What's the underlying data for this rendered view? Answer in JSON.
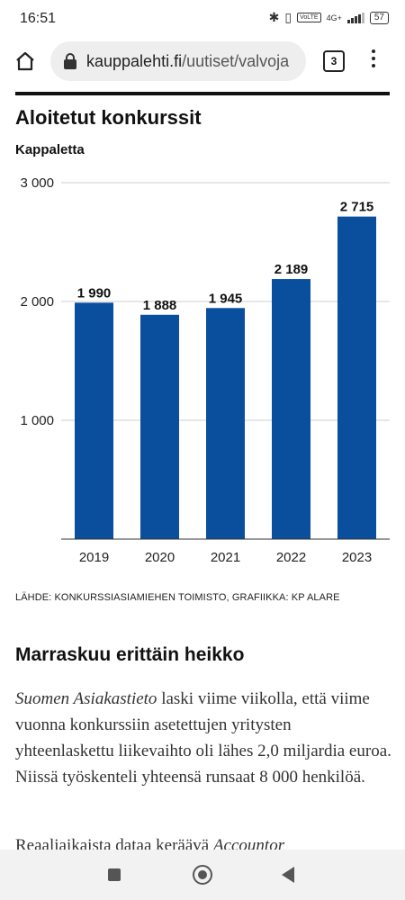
{
  "status_bar": {
    "time": "16:51",
    "network": "4G+",
    "volte": "VoLTE",
    "battery": "57"
  },
  "browser": {
    "url_host": "kauppalehti.fi",
    "url_path": "/uutiset/valvoja",
    "tab_count": "3"
  },
  "chart_data": {
    "type": "bar",
    "title": "Aloitetut konkurssit",
    "ylabel": "Kappaletta",
    "categories": [
      "2019",
      "2020",
      "2021",
      "2022",
      "2023"
    ],
    "values": [
      1990,
      1888,
      1945,
      2189,
      2715
    ],
    "value_labels": [
      "1 990",
      "1 888",
      "1 945",
      "2 189",
      "2 715"
    ],
    "ylim": [
      0,
      3000
    ],
    "yticks": [
      1000,
      2000,
      3000
    ],
    "ytick_labels": [
      "1 000",
      "2 000",
      "3 000"
    ],
    "bar_color": "#0a4f9e",
    "grid": true
  },
  "article": {
    "source": "LÄHDE: KONKURSSIASIAMIEHEN TOIMISTO, GRAFIIKKA: KP ALARE",
    "subheading": "Marraskuu erittäin heikko",
    "p1_italic": "Suomen Asiakastieto",
    "p1_rest": " laski viime viikolla, että viime vuonna konkurssiin asetettujen yritysten yhteenlaskettu liikevaihto oli lähes 2,0 miljardia euroa. Niissä työskenteli yhteensä runsaat 8 000 henkilöä.",
    "p2_start": "Reaaliaikaista dataa keräävä ",
    "p2_italic": "Accountor"
  }
}
